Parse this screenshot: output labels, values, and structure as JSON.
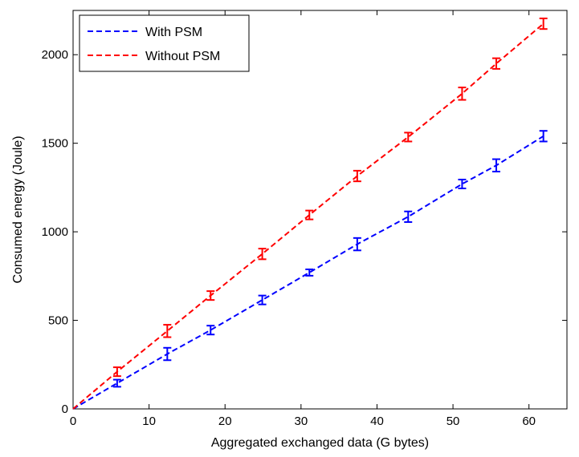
{
  "chart_data": {
    "type": "line",
    "title": "",
    "xlabel": "Aggregated exchanged data (G bytes)",
    "ylabel": "Consumed energy (Joule)",
    "xlim": [
      0,
      65
    ],
    "ylim": [
      0,
      2250
    ],
    "xticks": [
      0,
      10,
      20,
      30,
      40,
      50,
      60
    ],
    "yticks": [
      0,
      500,
      1000,
      1500,
      2000
    ],
    "grid": false,
    "legend_position": "top-left",
    "series": [
      {
        "name": "With PSM",
        "color": "#0000ff",
        "line_style": "dashed",
        "x": [
          0,
          5.8,
          12.4,
          18.1,
          24.9,
          31.1,
          37.4,
          44.1,
          51.2,
          55.7,
          61.9
        ],
        "y": [
          0,
          145,
          310,
          445,
          615,
          770,
          930,
          1085,
          1270,
          1375,
          1540
        ],
        "error": [
          0,
          20,
          35,
          25,
          25,
          18,
          35,
          30,
          25,
          35,
          30
        ]
      },
      {
        "name": "Without PSM",
        "color": "#ff0000",
        "line_style": "dashed",
        "x": [
          0,
          5.8,
          12.4,
          18.1,
          24.9,
          31.1,
          37.4,
          44.1,
          51.2,
          55.7,
          61.9
        ],
        "y": [
          0,
          210,
          440,
          640,
          875,
          1095,
          1315,
          1535,
          1780,
          1950,
          2175
        ],
        "error": [
          0,
          25,
          35,
          25,
          30,
          25,
          30,
          25,
          35,
          30,
          30
        ]
      }
    ]
  }
}
